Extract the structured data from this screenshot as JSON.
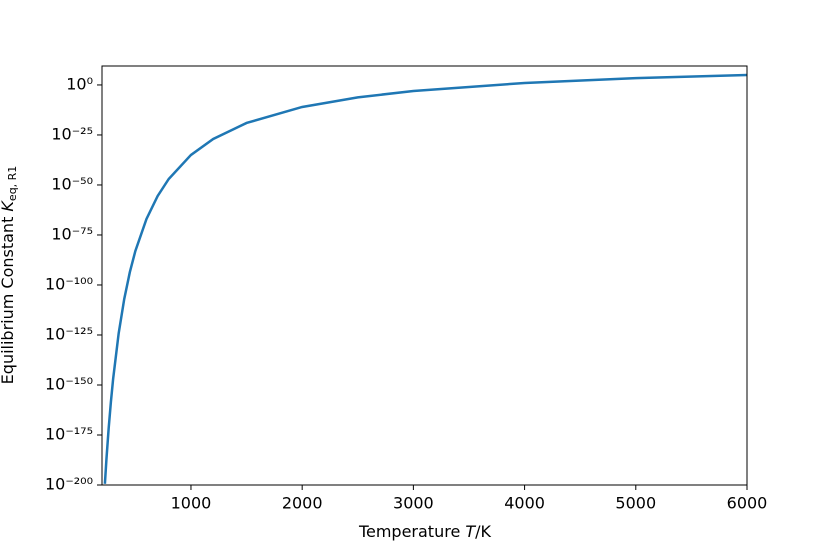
{
  "chart_data": {
    "type": "line",
    "x_label": {
      "text": "Temperature ",
      "symbol": "T",
      "unit": "/K"
    },
    "y_label": {
      "text": "Equilibrium Constant ",
      "symbol": "K",
      "subscript": "eq, R1"
    },
    "x": [
      226,
      240,
      260,
      280,
      300,
      350,
      400,
      450,
      500,
      600,
      700,
      800,
      1000,
      1200,
      1500,
      2000,
      2500,
      3000,
      4000,
      5000,
      6000
    ],
    "series": [
      {
        "color": "#1f77b4",
        "values": [
          4.1e-200,
          1e-187,
          2.4e-172,
          3.7e-159,
          1e-147,
          7.2e-125,
          1e-107,
          2.1e-94,
          1e-83,
          1e-67,
          2.7e-56,
          1e-47,
          1e-35,
          1e-27,
          1e-19,
          1e-11,
          6.3e-07,
          0.001,
          10,
          2500,
          100000
        ]
      }
    ],
    "xlim": [
      200,
      6000
    ],
    "xticks": [
      1000,
      2000,
      3000,
      4000,
      5000,
      6000
    ],
    "ylim": [
      1e-200,
      3000000000.0
    ],
    "yscale": "log",
    "yticks": [
      {
        "value": 1,
        "label": "10⁰"
      },
      {
        "value": 1e-25,
        "label": "10⁻²⁵"
      },
      {
        "value": 1e-50,
        "label": "10⁻⁵⁰"
      },
      {
        "value": 1e-75,
        "label": "10⁻⁷⁵"
      },
      {
        "value": 1e-100,
        "label": "10⁻¹⁰⁰"
      },
      {
        "value": 1e-125,
        "label": "10⁻¹²⁵"
      },
      {
        "value": 1e-150,
        "label": "10⁻¹⁵⁰"
      },
      {
        "value": 1e-175,
        "label": "10⁻¹⁷⁵"
      },
      {
        "value": 1e-200,
        "label": "10⁻²⁰⁰"
      }
    ],
    "grid": false
  }
}
